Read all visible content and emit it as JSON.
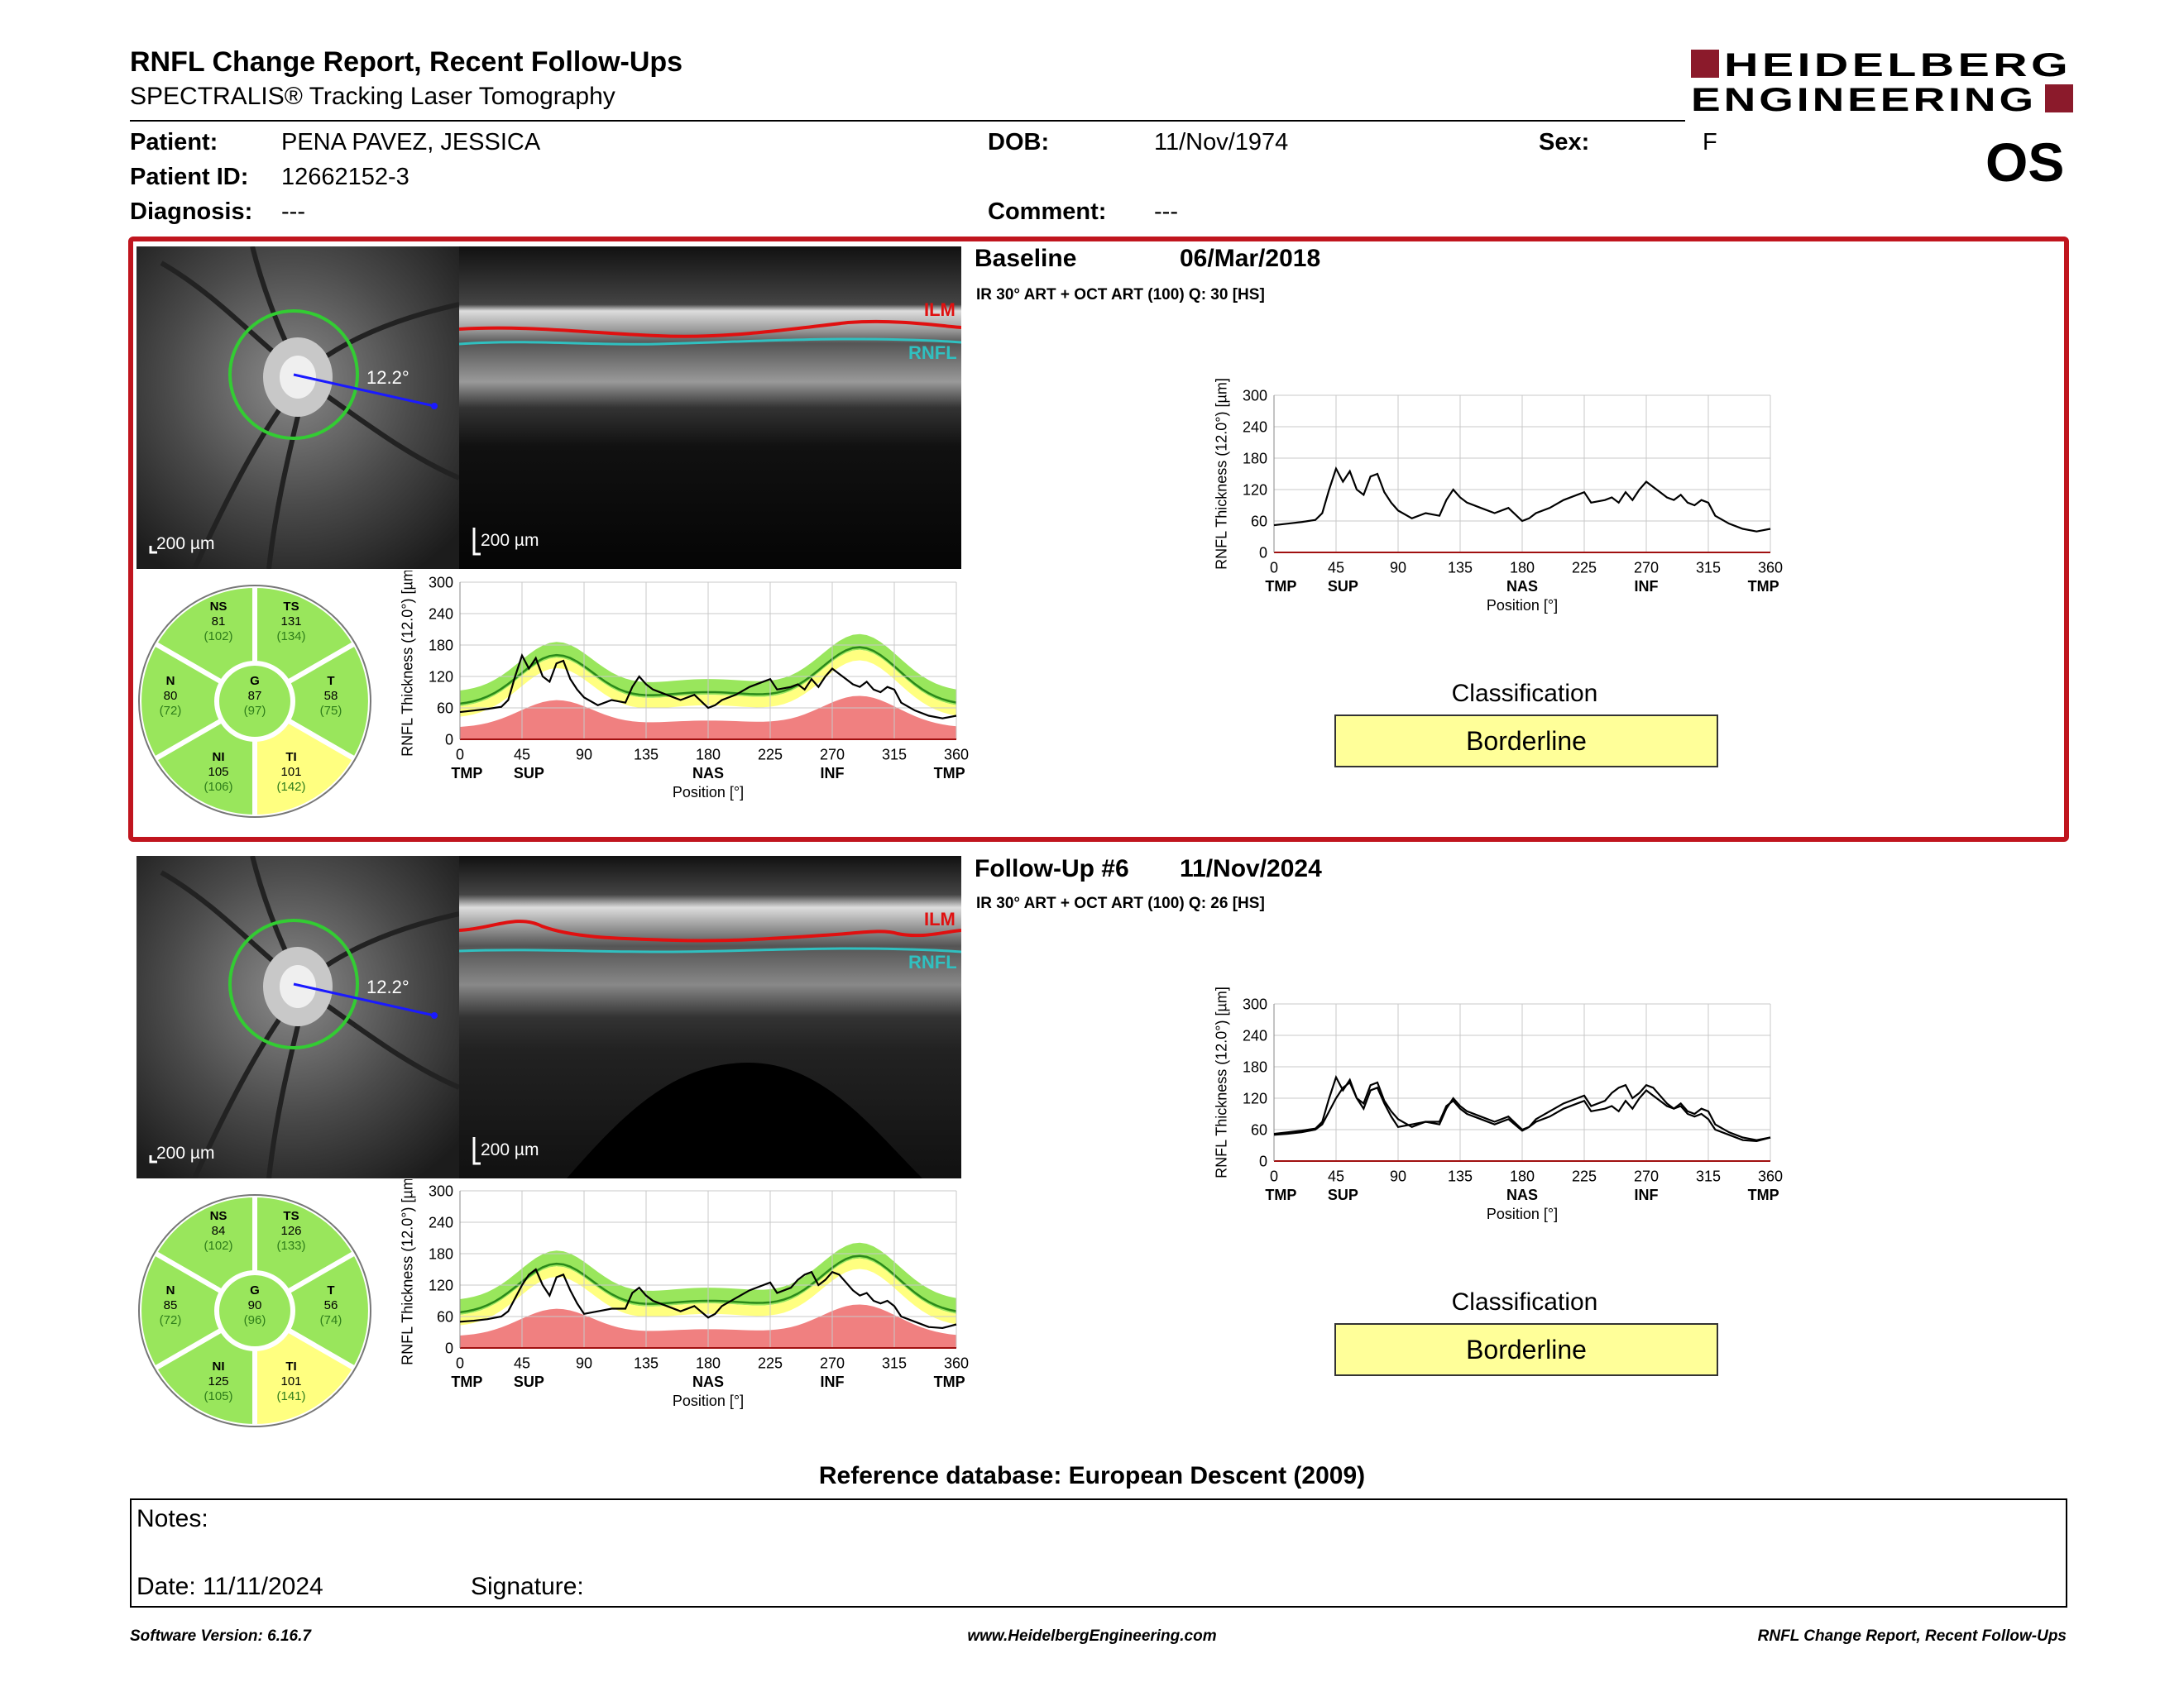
{
  "header": {
    "title": "RNFL Change Report, Recent Follow-Ups",
    "subtitle": "SPECTRALIS® Tracking Laser Tomography",
    "logo_line1": "HEIDELBERG",
    "logo_line2": "ENGINEERING",
    "eye": "OS"
  },
  "patient": {
    "patient_label": "Patient:",
    "patient_value": "PENA PAVEZ, JESSICA",
    "id_label": "Patient ID:",
    "id_value": "12662152-3",
    "diagnosis_label": "Diagnosis:",
    "diagnosis_value": "---",
    "dob_label": "DOB:",
    "dob_value": "11/Nov/1974",
    "comment_label": "Comment:",
    "comment_value": "---",
    "sex_label": "Sex:",
    "sex_value": "F"
  },
  "exams": [
    {
      "label": "Baseline",
      "date": "06/Mar/2018",
      "scan_info": "IR 30° ART + OCT ART (100) Q: 30 [HS]",
      "angle": "12.2°",
      "scale_fundus": "200 µm",
      "scale_oct": "200 µm",
      "ilm": "ILM",
      "rnfl": "RNFL",
      "sectors": {
        "NS": {
          "name": "NS",
          "value": "81",
          "normal": "(102)"
        },
        "TS": {
          "name": "TS",
          "value": "131",
          "normal": "(134)"
        },
        "N": {
          "name": "N",
          "value": "80",
          "normal": "(72)"
        },
        "G": {
          "name": "G",
          "value": "87",
          "normal": "(97)"
        },
        "T": {
          "name": "T",
          "value": "58",
          "normal": "(75)"
        },
        "NI": {
          "name": "NI",
          "value": "105",
          "normal": "(106)"
        },
        "TI": {
          "name": "TI",
          "value": "101",
          "normal": "(142)"
        }
      },
      "classification_title": "Classification",
      "classification": "Borderline"
    },
    {
      "label": "Follow-Up #6",
      "date": "11/Nov/2024",
      "scan_info": "IR 30° ART + OCT ART (100) Q: 26 [HS]",
      "angle": "12.2°",
      "scale_fundus": "200 µm",
      "scale_oct": "200 µm",
      "ilm": "ILM",
      "rnfl": "RNFL",
      "sectors": {
        "NS": {
          "name": "NS",
          "value": "84",
          "normal": "(102)"
        },
        "TS": {
          "name": "TS",
          "value": "126",
          "normal": "(133)"
        },
        "N": {
          "name": "N",
          "value": "85",
          "normal": "(72)"
        },
        "G": {
          "name": "G",
          "value": "90",
          "normal": "(96)"
        },
        "T": {
          "name": "T",
          "value": "56",
          "normal": "(74)"
        },
        "NI": {
          "name": "NI",
          "value": "125",
          "normal": "(105)"
        },
        "TI": {
          "name": "TI",
          "value": "101",
          "normal": "(141)"
        }
      },
      "classification_title": "Classification",
      "classification": "Borderline"
    }
  ],
  "chart_data": [
    {
      "type": "line",
      "ylabel": "RNFL Thickness (12.0°) [µm]",
      "xlabel": "Position [°]",
      "xlim": [
        0,
        360
      ],
      "ylim": [
        0,
        300
      ],
      "xticks": [
        "0",
        "45",
        "90",
        "135",
        "180",
        "225",
        "270",
        "315",
        "360"
      ],
      "yticks": [
        "0",
        "60",
        "120",
        "180",
        "240",
        "300"
      ],
      "sector_labels": [
        "TMP",
        "SUP",
        "NAS",
        "INF",
        "TMP"
      ],
      "sector_positions": [
        5,
        50,
        180,
        270,
        355
      ],
      "x": [
        0,
        10,
        20,
        30,
        35,
        40,
        45,
        50,
        55,
        60,
        65,
        70,
        75,
        80,
        85,
        90,
        100,
        110,
        120,
        125,
        130,
        135,
        140,
        150,
        160,
        170,
        180,
        185,
        190,
        200,
        210,
        220,
        225,
        230,
        240,
        245,
        250,
        255,
        260,
        265,
        270,
        275,
        280,
        285,
        290,
        295,
        300,
        305,
        310,
        315,
        320,
        330,
        340,
        350,
        360
      ],
      "series": [
        {
          "name": "Baseline 06/Mar/2018",
          "values": [
            52,
            55,
            58,
            62,
            75,
            120,
            160,
            135,
            155,
            120,
            110,
            145,
            150,
            115,
            95,
            80,
            65,
            75,
            70,
            100,
            120,
            105,
            95,
            85,
            75,
            85,
            60,
            65,
            75,
            85,
            100,
            110,
            115,
            95,
            100,
            105,
            95,
            115,
            100,
            120,
            135,
            125,
            115,
            105,
            100,
            110,
            95,
            90,
            100,
            95,
            70,
            55,
            45,
            40,
            45
          ]
        }
      ]
    },
    {
      "type": "line",
      "ylabel": "RNFL Thickness (12.0°) [µm]",
      "xlabel": "Position [°]",
      "xlim": [
        0,
        360
      ],
      "ylim": [
        0,
        300
      ],
      "xticks": [
        "0",
        "45",
        "90",
        "135",
        "180",
        "225",
        "270",
        "315",
        "360"
      ],
      "yticks": [
        "0",
        "60",
        "120",
        "180",
        "240",
        "300"
      ],
      "sector_labels": [
        "TMP",
        "SUP",
        "NAS",
        "INF",
        "TMP"
      ],
      "sector_positions": [
        5,
        50,
        180,
        270,
        355
      ],
      "x": [
        0,
        10,
        20,
        30,
        35,
        40,
        45,
        50,
        55,
        60,
        65,
        70,
        75,
        80,
        85,
        90,
        100,
        110,
        120,
        125,
        130,
        135,
        140,
        150,
        160,
        170,
        180,
        185,
        190,
        200,
        210,
        220,
        225,
        230,
        240,
        245,
        250,
        255,
        260,
        265,
        270,
        275,
        280,
        285,
        290,
        295,
        300,
        305,
        310,
        315,
        320,
        330,
        340,
        350,
        360
      ],
      "series": [
        {
          "name": "Baseline 06/Mar/2018",
          "values": [
            52,
            55,
            58,
            62,
            75,
            120,
            160,
            135,
            155,
            120,
            110,
            145,
            150,
            115,
            95,
            80,
            65,
            75,
            70,
            100,
            120,
            105,
            95,
            85,
            75,
            85,
            60,
            65,
            75,
            85,
            100,
            110,
            115,
            95,
            100,
            105,
            95,
            115,
            100,
            120,
            135,
            125,
            115,
            105,
            100,
            110,
            95,
            90,
            100,
            95,
            70,
            55,
            45,
            40,
            45
          ]
        },
        {
          "name": "Follow-Up #6 11/Nov/2024",
          "values": [
            50,
            52,
            55,
            60,
            70,
            95,
            120,
            140,
            150,
            120,
            100,
            135,
            140,
            110,
            85,
            65,
            70,
            75,
            75,
            105,
            115,
            100,
            90,
            80,
            70,
            80,
            58,
            65,
            80,
            95,
            110,
            120,
            125,
            105,
            115,
            130,
            140,
            145,
            120,
            130,
            145,
            140,
            125,
            110,
            100,
            105,
            90,
            85,
            90,
            80,
            60,
            50,
            40,
            38,
            45
          ]
        }
      ]
    },
    {
      "type": "area",
      "ylabel": "RNFL Thickness (12.0°) [µm]",
      "xlabel": "Position [°]",
      "xlim": [
        0,
        360
      ],
      "ylim": [
        0,
        300
      ],
      "xticks": [
        "0",
        "45",
        "90",
        "135",
        "180",
        "225",
        "270",
        "315",
        "360"
      ],
      "yticks": [
        "0",
        "60",
        "120",
        "180",
        "240",
        "300"
      ],
      "sector_labels": [
        "TMP",
        "SUP",
        "NAS",
        "INF",
        "TMP"
      ],
      "sector_positions": [
        5,
        50,
        180,
        270,
        355
      ],
      "x": [
        0,
        10,
        20,
        30,
        35,
        40,
        45,
        50,
        55,
        60,
        65,
        70,
        75,
        80,
        85,
        90,
        100,
        110,
        120,
        125,
        130,
        135,
        140,
        150,
        160,
        170,
        180,
        185,
        190,
        200,
        210,
        220,
        225,
        230,
        240,
        245,
        250,
        255,
        260,
        265,
        270,
        275,
        280,
        285,
        290,
        295,
        300,
        305,
        310,
        315,
        320,
        330,
        340,
        350,
        360
      ],
      "series": [
        {
          "name": "Patient",
          "values": [
            52,
            55,
            58,
            62,
            75,
            120,
            160,
            135,
            155,
            120,
            110,
            145,
            150,
            115,
            95,
            80,
            65,
            75,
            70,
            100,
            120,
            105,
            95,
            85,
            75,
            85,
            60,
            65,
            75,
            85,
            100,
            110,
            115,
            95,
            100,
            105,
            95,
            115,
            100,
            120,
            135,
            125,
            115,
            105,
            100,
            110,
            95,
            90,
            100,
            95,
            70,
            55,
            45,
            40,
            45
          ]
        }
      ]
    },
    {
      "type": "area",
      "ylabel": "RNFL Thickness (12.0°) [µm]",
      "xlabel": "Position [°]",
      "xlim": [
        0,
        360
      ],
      "ylim": [
        0,
        300
      ],
      "xticks": [
        "0",
        "45",
        "90",
        "135",
        "180",
        "225",
        "270",
        "315",
        "360"
      ],
      "yticks": [
        "0",
        "60",
        "120",
        "180",
        "240",
        "300"
      ],
      "sector_labels": [
        "TMP",
        "SUP",
        "NAS",
        "INF",
        "TMP"
      ],
      "sector_positions": [
        5,
        50,
        180,
        270,
        355
      ],
      "x": [
        0,
        10,
        20,
        30,
        35,
        40,
        45,
        50,
        55,
        60,
        65,
        70,
        75,
        80,
        85,
        90,
        100,
        110,
        120,
        125,
        130,
        135,
        140,
        150,
        160,
        170,
        180,
        185,
        190,
        200,
        210,
        220,
        225,
        230,
        240,
        245,
        250,
        255,
        260,
        265,
        270,
        275,
        280,
        285,
        290,
        295,
        300,
        305,
        310,
        315,
        320,
        330,
        340,
        350,
        360
      ],
      "series": [
        {
          "name": "Patient",
          "values": [
            50,
            52,
            55,
            60,
            70,
            95,
            120,
            140,
            150,
            120,
            100,
            135,
            140,
            110,
            85,
            65,
            70,
            75,
            75,
            105,
            115,
            100,
            90,
            80,
            70,
            80,
            58,
            65,
            80,
            95,
            110,
            120,
            125,
            105,
            115,
            130,
            140,
            145,
            120,
            130,
            145,
            140,
            125,
            110,
            100,
            105,
            90,
            85,
            90,
            80,
            60,
            50,
            40,
            38,
            45
          ]
        }
      ]
    }
  ],
  "reference": "Reference database: European Descent (2009)",
  "notes": {
    "notes_label": "Notes:",
    "date_label": "Date: 11/11/2024",
    "signature_label": "Signature:"
  },
  "footer": {
    "version": "Software Version: 6.16.7",
    "website": "www.HeidelbergEngineering.com",
    "report_name": "RNFL Change Report, Recent Follow-Ups"
  },
  "colors": {
    "frame_red": "#c0151e",
    "normal_green": "#99e65c",
    "borderline_yellow": "#ffff80",
    "outside_red": "#f08080",
    "classification_fill": "#ffff99"
  }
}
